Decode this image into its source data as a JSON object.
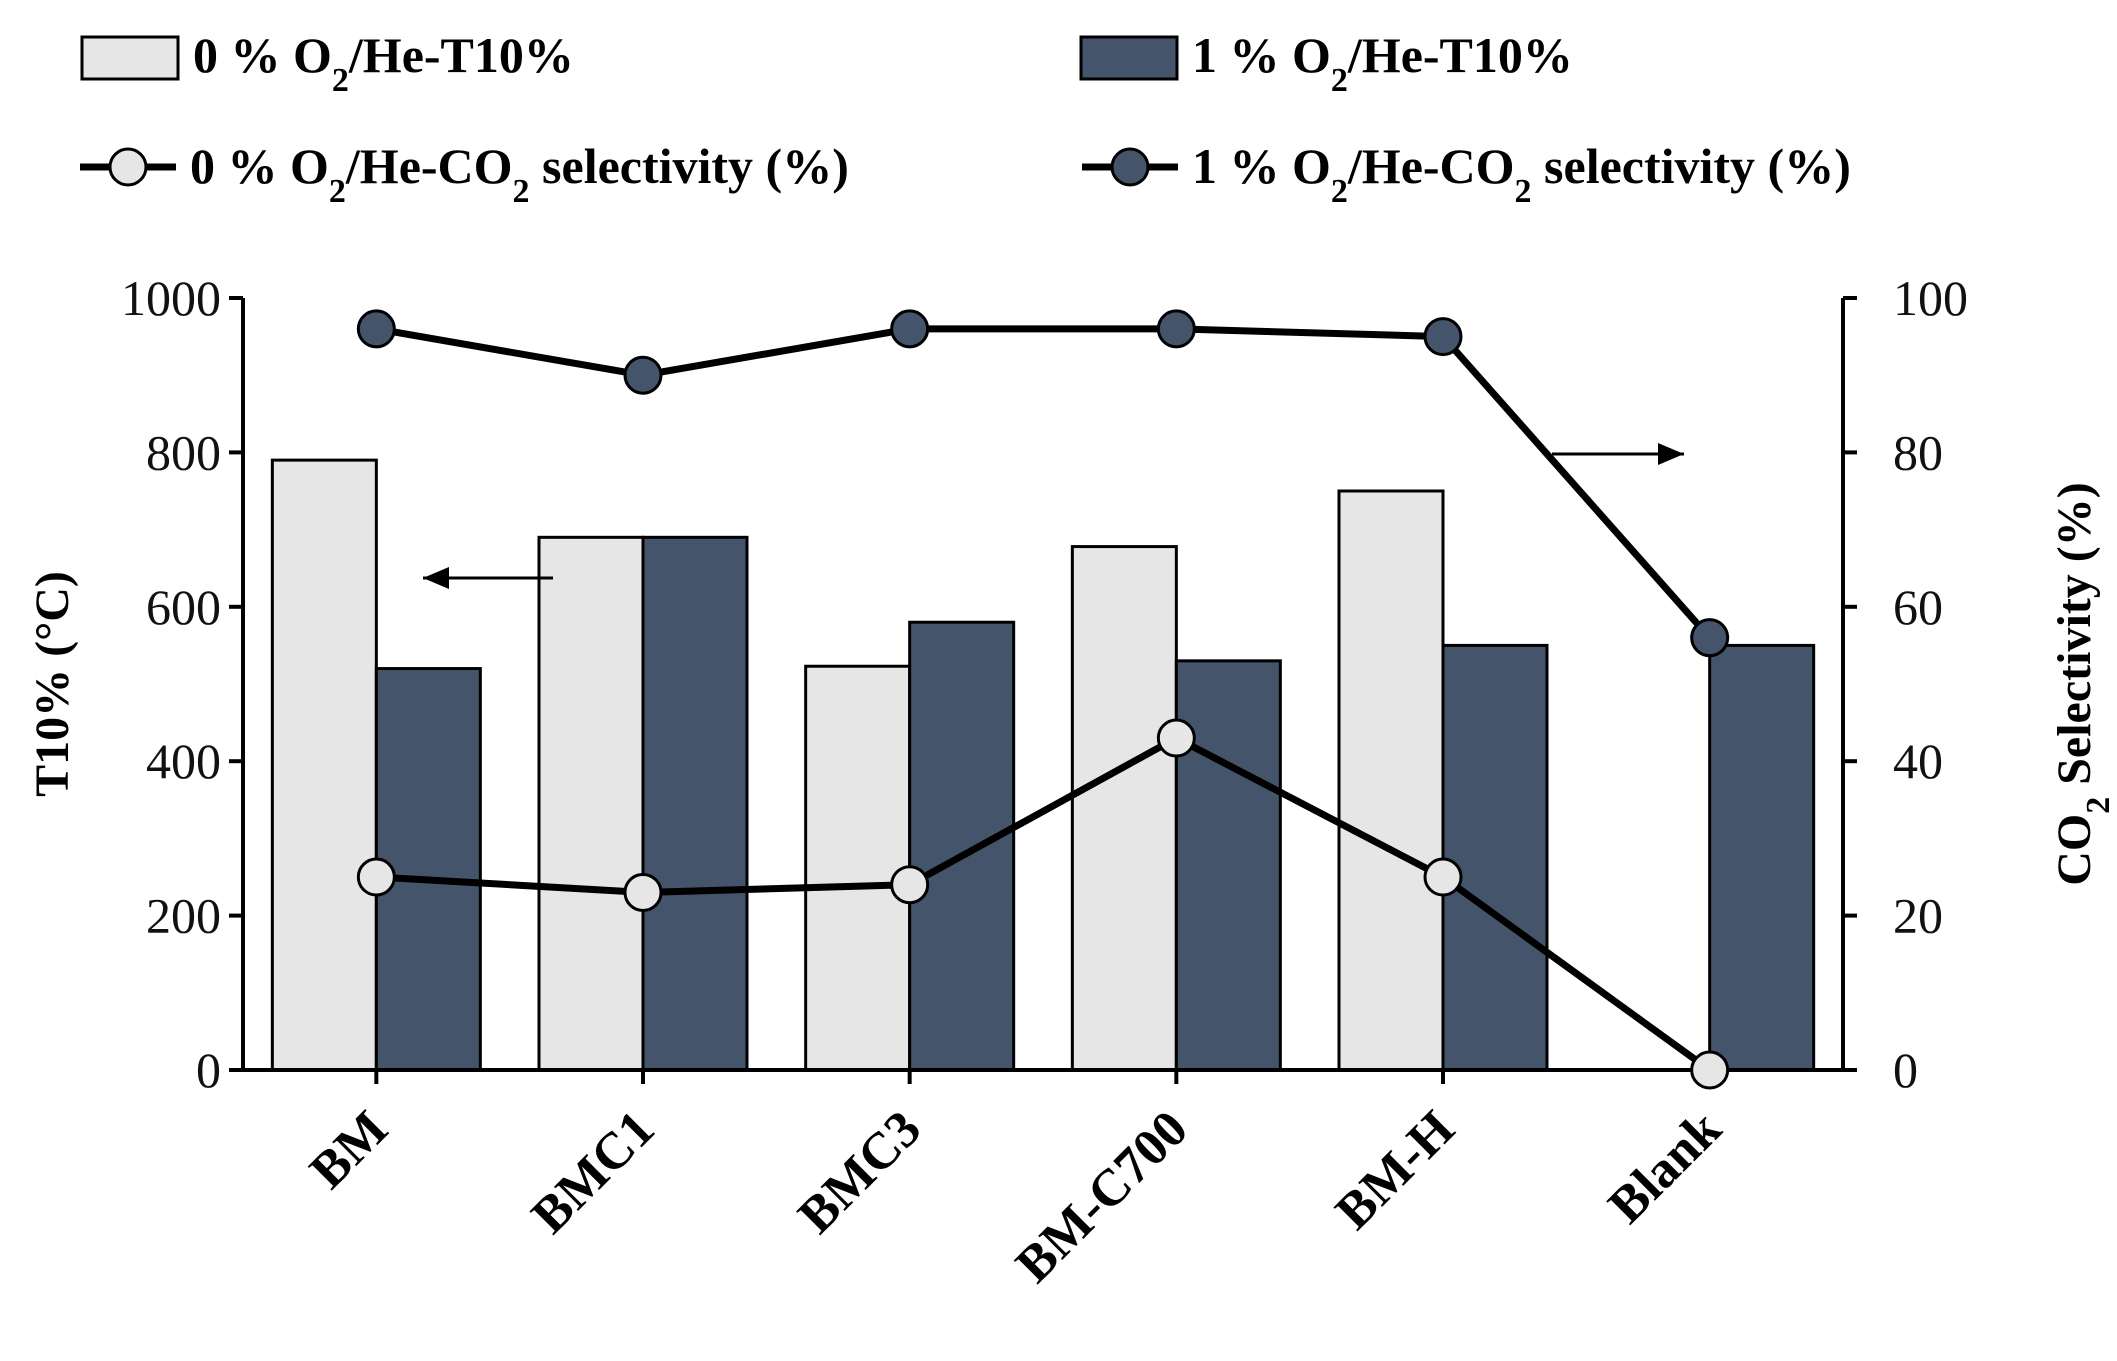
{
  "chart_data": {
    "type": "bar",
    "categories": [
      "BM",
      "BMC1",
      "BMC3",
      "BM-C700",
      "BM-H",
      "Blank"
    ],
    "series": [
      {
        "name": "0 % O2/He-T10%",
        "legend_parts": [
          "0 % O",
          "2",
          "/He-T10%"
        ],
        "kind": "bar",
        "axis": "left",
        "color": "#e6e6e6",
        "values": [
          790,
          690,
          523,
          678,
          750,
          null
        ]
      },
      {
        "name": "1 % O2/He-T10%",
        "legend_parts": [
          "1 % O",
          "2",
          "/He-T10%"
        ],
        "kind": "bar",
        "axis": "left",
        "color": "#44546a",
        "values": [
          520,
          690,
          580,
          530,
          550,
          550
        ]
      },
      {
        "name": "0 % O2/He-CO2 selectivity (%)",
        "legend_parts": [
          "0 % O",
          "2",
          "/He-CO",
          "2",
          " selectivity  (%)"
        ],
        "kind": "line",
        "axis": "right",
        "color": "#e6e6e6",
        "values": [
          25,
          23,
          24,
          43,
          25,
          0
        ]
      },
      {
        "name": "1 % O2/He-CO2 selectivity (%)",
        "legend_parts": [
          "1 % O",
          "2",
          "/He-CO",
          "2",
          " selectivity  (%)"
        ],
        "kind": "line",
        "axis": "right",
        "color": "#44546a",
        "values": [
          96,
          90,
          96,
          96,
          95,
          56
        ]
      }
    ],
    "y_left": {
      "label": "T10% (°C)",
      "range": [
        0,
        1000
      ],
      "ticks": [
        "0",
        "200",
        "400",
        "600",
        "800",
        "1000"
      ]
    },
    "y_right": {
      "label_parts": [
        "CO",
        "2",
        " Selectivity  (%)"
      ],
      "range": [
        0,
        100
      ],
      "ticks": [
        "0",
        "20",
        "40",
        "60",
        "80",
        "100"
      ]
    },
    "legend_position": "top",
    "grid": false,
    "annotations": [
      "arrow-left-axis",
      "arrow-right-axis"
    ]
  }
}
